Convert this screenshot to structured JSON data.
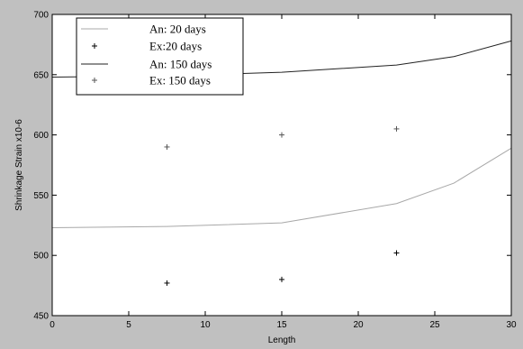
{
  "chart_data": {
    "type": "line",
    "title": "",
    "xlabel": "Length",
    "ylabel": "Shrinkage Strain x10-6",
    "xlim": [
      0,
      30
    ],
    "ylim": [
      450,
      700
    ],
    "xticks": [
      0,
      5,
      10,
      15,
      20,
      25,
      30
    ],
    "yticks": [
      450,
      500,
      550,
      600,
      650,
      700
    ],
    "grid": false,
    "legend_position": "top-left",
    "series": [
      {
        "name": "An: 20 days",
        "style": "line",
        "color": "#a8a8a8",
        "x": [
          0,
          7.5,
          15,
          22.5,
          26.25,
          30
        ],
        "y": [
          523,
          524,
          527,
          543,
          560,
          589
        ]
      },
      {
        "name": "Ex:20 days",
        "style": "marker",
        "marker": "+",
        "color": "#000000",
        "x": [
          7.5,
          15,
          22.5
        ],
        "y": [
          477,
          480,
          502
        ]
      },
      {
        "name": "An: 150 days",
        "style": "line",
        "color": "#222222",
        "x": [
          0,
          7.5,
          15,
          22.5,
          26.25,
          30
        ],
        "y": [
          648,
          649,
          652,
          658,
          665,
          678
        ]
      },
      {
        "name": "Ex: 150 days",
        "style": "marker",
        "marker": "+",
        "color": "#555555",
        "x": [
          7.5,
          15,
          22.5
        ],
        "y": [
          590,
          600,
          605
        ]
      }
    ]
  }
}
